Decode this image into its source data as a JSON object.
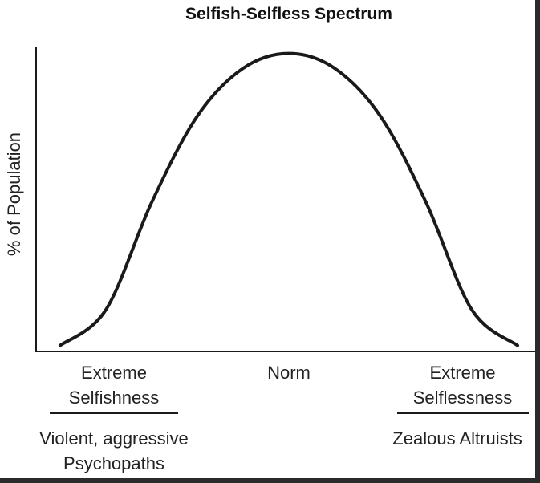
{
  "chart_data": {
    "type": "line",
    "title": "Selfish-Selfless Spectrum",
    "ylabel": "% of Population",
    "xlabel": "",
    "categories": [
      {
        "lines": [
          "Extreme",
          "Selfishness"
        ],
        "underlined": true
      },
      {
        "lines": [
          "Norm"
        ],
        "underlined": false
      },
      {
        "lines": [
          "Extreme",
          "Selflessness"
        ],
        "underlined": true
      }
    ],
    "descriptions": [
      "Violent, aggressive Psychopaths",
      "Zealous Altruists"
    ],
    "series": [
      {
        "x": [
          0,
          0.1,
          0.2,
          0.3,
          0.4,
          0.5,
          0.6,
          0.7,
          0.8,
          0.9,
          1.0
        ],
        "values": [
          0.02,
          0.14,
          0.5,
          0.79,
          0.95,
          1.0,
          0.95,
          0.79,
          0.5,
          0.14,
          0.02
        ]
      }
    ],
    "xlim": [
      0,
      1
    ],
    "ylim": [
      0,
      1.05
    ],
    "grid": false,
    "line_color": "#1a1a1a"
  }
}
